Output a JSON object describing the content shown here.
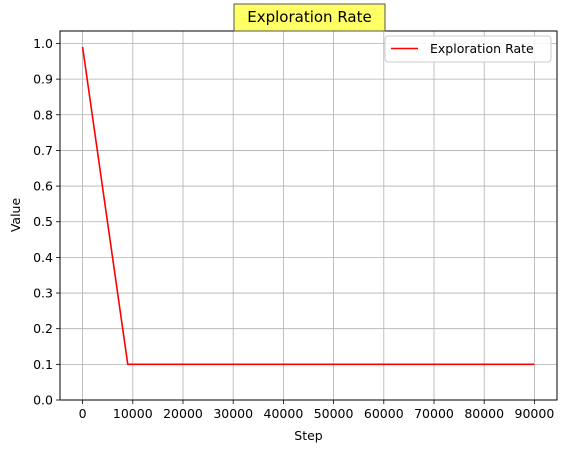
{
  "chart_data": {
    "type": "line",
    "title": "Exploration Rate",
    "xlabel": "Step",
    "ylabel": "Value",
    "xlim": [
      -4500,
      94500
    ],
    "ylim": [
      0.0,
      1.035
    ],
    "xticks": [
      0,
      10000,
      20000,
      30000,
      40000,
      50000,
      60000,
      70000,
      80000,
      90000
    ],
    "xtick_labels": [
      "0",
      "10000",
      "20000",
      "30000",
      "40000",
      "50000",
      "60000",
      "70000",
      "80000",
      "90000"
    ],
    "yticks": [
      0.0,
      0.1,
      0.2,
      0.3,
      0.4,
      0.5,
      0.6,
      0.7,
      0.8,
      0.9,
      1.0
    ],
    "ytick_labels": [
      "0.0",
      "0.1",
      "0.2",
      "0.3",
      "0.4",
      "0.5",
      "0.6",
      "0.7",
      "0.8",
      "0.9",
      "1.0"
    ],
    "grid": true,
    "legend_position": "top-right",
    "title_box_color": "#ffff66",
    "series": [
      {
        "name": "Exploration Rate",
        "color": "#ff0000",
        "x": [
          0,
          9000,
          90000
        ],
        "y": [
          0.99,
          0.1,
          0.1
        ]
      }
    ]
  }
}
